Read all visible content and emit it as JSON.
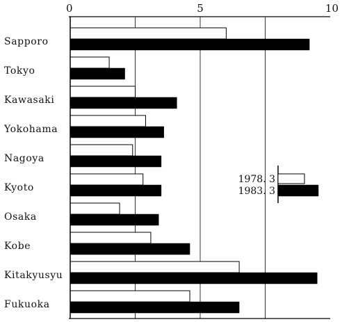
{
  "chart_data": {
    "type": "bar",
    "orientation": "horizontal",
    "categories": [
      "Sapporo",
      "Tokyo",
      "Kawasaki",
      "Yokohama",
      "Nagoya",
      "Kyoto",
      "Osaka",
      "Kobe",
      "Kitakyusyu",
      "Fukuoka"
    ],
    "series": [
      {
        "name": "1978. 3",
        "color": "#ffffff",
        "values": [
          6.0,
          1.5,
          2.5,
          2.9,
          2.4,
          2.8,
          1.9,
          3.1,
          6.5,
          4.6
        ]
      },
      {
        "name": "1983. 3",
        "color": "#000000",
        "values": [
          9.2,
          2.1,
          4.1,
          3.6,
          3.5,
          3.5,
          3.4,
          4.6,
          9.5,
          6.5
        ]
      }
    ],
    "xlim": [
      0,
      10
    ],
    "xticks": [
      0,
      5,
      10
    ],
    "xtick_labels": [
      "0",
      "5",
      "10"
    ],
    "gridlines_at": [
      2.5,
      5,
      7.5
    ],
    "grid": true,
    "legend": {
      "position": "right",
      "entries": [
        "1978. 3",
        "1983. 3"
      ]
    },
    "title": "",
    "xlabel": "",
    "ylabel": ""
  }
}
